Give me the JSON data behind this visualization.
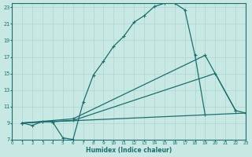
{
  "xlabel": "Humidex (Indice chaleur)",
  "bg_color": "#c8e8e4",
  "line_color": "#1e6e6e",
  "grid_color": "#b0d8d4",
  "line1_x": [
    1,
    2,
    3,
    4,
    5,
    6,
    7,
    8,
    9,
    10,
    11,
    12,
    13,
    14,
    15,
    16,
    17,
    18,
    19
  ],
  "line1_y": [
    9.0,
    8.7,
    9.2,
    9.1,
    7.2,
    7.0,
    11.5,
    14.8,
    16.5,
    18.3,
    19.5,
    21.2,
    22.0,
    23.1,
    23.5,
    23.5,
    22.7,
    17.2,
    10.0
  ],
  "line2_x": [
    1,
    6,
    19,
    22
  ],
  "line2_y": [
    9.0,
    9.5,
    17.2,
    10.5
  ],
  "line3_x": [
    1,
    6,
    20,
    22,
    23
  ],
  "line3_y": [
    9.0,
    9.3,
    15.0,
    10.5,
    10.2
  ],
  "line4_x": [
    1,
    23
  ],
  "line4_y": [
    9.0,
    10.2
  ],
  "xlim": [
    0,
    23
  ],
  "ylim": [
    7,
    23.5
  ],
  "xticks": [
    0,
    1,
    2,
    3,
    4,
    5,
    6,
    7,
    8,
    9,
    10,
    11,
    12,
    13,
    14,
    15,
    16,
    17,
    18,
    19,
    20,
    21,
    22,
    23
  ],
  "yticks": [
    7,
    9,
    11,
    13,
    15,
    17,
    19,
    21,
    23
  ]
}
